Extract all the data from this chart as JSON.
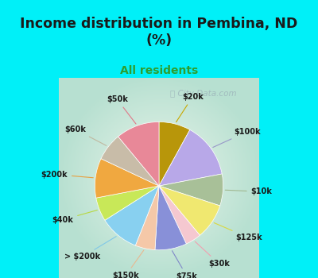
{
  "title": "Income distribution in Pembina, ND\n(%)",
  "subtitle": "All residents",
  "labels": [
    "$20k",
    "$100k",
    "$10k",
    "$125k",
    "$30k",
    "$75k",
    "$150k",
    "> $200k",
    "$40k",
    "$200k",
    "$60k",
    "$50k"
  ],
  "sizes": [
    8,
    14,
    8,
    9,
    4,
    8,
    5,
    10,
    6,
    10,
    7,
    11
  ],
  "colors": [
    "#b8960a",
    "#b8a8e8",
    "#a8c098",
    "#f0e870",
    "#f5c8d0",
    "#8890d8",
    "#f5c8a8",
    "#88d0f0",
    "#c8e858",
    "#f0a840",
    "#c8bca8",
    "#e88898"
  ],
  "background_top": "#00f0f8",
  "background_chart_color": "#d8ede0",
  "title_color": "#1a1a1a",
  "subtitle_color": "#2e9e2e",
  "watermark": "City-Data.com",
  "startangle": 90,
  "label_color": "#1a1a1a",
  "line_color_map": {
    "$20k": "#c8a800",
    "$100k": "#9898c8",
    "$10k": "#a0b890",
    "$125k": "#d8d840",
    "$30k": "#f0a0b0",
    "$75k": "#8088c8",
    "$150k": "#e8b890",
    "> $200k": "#80c8e8",
    "$40k": "#b8d840",
    "$200k": "#e8a040",
    "$60k": "#c0b8a0",
    "$50k": "#e07888"
  }
}
